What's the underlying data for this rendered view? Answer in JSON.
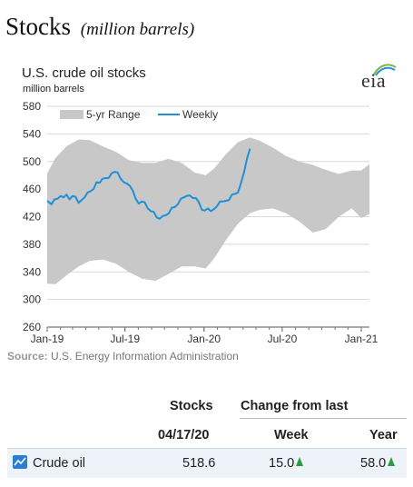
{
  "page": {
    "title": "Stocks",
    "title_sub": "(million barrels)"
  },
  "logo": {
    "text": "eia"
  },
  "chart_data": {
    "type": "line",
    "title": "U.S. crude oil stocks",
    "unit_label": "million  barrels",
    "ylim": [
      260,
      580
    ],
    "yticks": [
      260,
      300,
      340,
      380,
      420,
      460,
      500,
      540,
      580
    ],
    "xlim": [
      "2019-01-01",
      "2021-01-20"
    ],
    "xticks": [
      {
        "date": "2019-01-01",
        "label": "Jan-19"
      },
      {
        "date": "2019-07-01",
        "label": "Jul-19"
      },
      {
        "date": "2020-01-01",
        "label": "Jan-20"
      },
      {
        "date": "2020-07-01",
        "label": "Jul-20"
      },
      {
        "date": "2021-01-01",
        "label": "Jan-21"
      }
    ],
    "grid": true,
    "legend_position": "top-left",
    "legend": [
      "5-yr Range",
      "Weekly"
    ],
    "colors": {
      "range": "#c8c8c8",
      "weekly": "#1e90d8"
    },
    "range_series": {
      "name": "5-yr Range",
      "points": [
        {
          "x": "2019-01-01",
          "low": 323,
          "high": 483
        },
        {
          "x": "2019-01-20",
          "low": 322,
          "high": 505
        },
        {
          "x": "2019-02-15",
          "low": 335,
          "high": 522
        },
        {
          "x": "2019-03-15",
          "low": 348,
          "high": 532
        },
        {
          "x": "2019-04-10",
          "low": 356,
          "high": 531
        },
        {
          "x": "2019-05-10",
          "low": 358,
          "high": 522
        },
        {
          "x": "2019-06-10",
          "low": 352,
          "high": 514
        },
        {
          "x": "2019-07-10",
          "low": 340,
          "high": 502
        },
        {
          "x": "2019-08-10",
          "low": 330,
          "high": 498
        },
        {
          "x": "2019-09-10",
          "low": 327,
          "high": 498
        },
        {
          "x": "2019-10-10",
          "low": 337,
          "high": 504
        },
        {
          "x": "2019-11-10",
          "low": 348,
          "high": 498
        },
        {
          "x": "2019-12-10",
          "low": 348,
          "high": 484
        },
        {
          "x": "2020-01-05",
          "low": 345,
          "high": 480
        },
        {
          "x": "2020-01-25",
          "low": 360,
          "high": 490
        },
        {
          "x": "2020-02-20",
          "low": 385,
          "high": 510
        },
        {
          "x": "2020-03-20",
          "low": 410,
          "high": 528
        },
        {
          "x": "2020-04-17",
          "low": 425,
          "high": 535
        },
        {
          "x": "2020-05-10",
          "low": 430,
          "high": 530
        },
        {
          "x": "2020-06-10",
          "low": 432,
          "high": 520
        },
        {
          "x": "2020-07-10",
          "low": 425,
          "high": 508
        },
        {
          "x": "2020-08-10",
          "low": 413,
          "high": 500
        },
        {
          "x": "2020-09-10",
          "low": 397,
          "high": 495
        },
        {
          "x": "2020-10-10",
          "low": 402,
          "high": 488
        },
        {
          "x": "2020-11-10",
          "low": 420,
          "high": 482
        },
        {
          "x": "2020-12-10",
          "low": 432,
          "high": 487
        },
        {
          "x": "2021-01-01",
          "low": 418,
          "high": 487
        },
        {
          "x": "2021-01-20",
          "low": 424,
          "high": 496
        }
      ]
    },
    "series": [
      {
        "name": "Weekly",
        "points": [
          {
            "x": "2019-01-01",
            "y": 443
          },
          {
            "x": "2019-01-11",
            "y": 438
          },
          {
            "x": "2019-01-18",
            "y": 445
          },
          {
            "x": "2019-01-25",
            "y": 446
          },
          {
            "x": "2019-02-01",
            "y": 450
          },
          {
            "x": "2019-02-08",
            "y": 448
          },
          {
            "x": "2019-02-15",
            "y": 452
          },
          {
            "x": "2019-02-22",
            "y": 445
          },
          {
            "x": "2019-03-01",
            "y": 450
          },
          {
            "x": "2019-03-08",
            "y": 449
          },
          {
            "x": "2019-03-15",
            "y": 440
          },
          {
            "x": "2019-03-22",
            "y": 444
          },
          {
            "x": "2019-03-29",
            "y": 448
          },
          {
            "x": "2019-04-05",
            "y": 455
          },
          {
            "x": "2019-04-12",
            "y": 457
          },
          {
            "x": "2019-04-19",
            "y": 460
          },
          {
            "x": "2019-04-26",
            "y": 470
          },
          {
            "x": "2019-05-03",
            "y": 469
          },
          {
            "x": "2019-05-10",
            "y": 475
          },
          {
            "x": "2019-05-17",
            "y": 476
          },
          {
            "x": "2019-05-24",
            "y": 476
          },
          {
            "x": "2019-05-31",
            "y": 483
          },
          {
            "x": "2019-06-07",
            "y": 485
          },
          {
            "x": "2019-06-14",
            "y": 484
          },
          {
            "x": "2019-06-21",
            "y": 475
          },
          {
            "x": "2019-06-28",
            "y": 470
          },
          {
            "x": "2019-07-05",
            "y": 468
          },
          {
            "x": "2019-07-12",
            "y": 465
          },
          {
            "x": "2019-07-19",
            "y": 458
          },
          {
            "x": "2019-07-26",
            "y": 446
          },
          {
            "x": "2019-08-02",
            "y": 439
          },
          {
            "x": "2019-08-09",
            "y": 442
          },
          {
            "x": "2019-08-16",
            "y": 441
          },
          {
            "x": "2019-08-23",
            "y": 432
          },
          {
            "x": "2019-08-30",
            "y": 428
          },
          {
            "x": "2019-09-06",
            "y": 427
          },
          {
            "x": "2019-09-13",
            "y": 419
          },
          {
            "x": "2019-09-20",
            "y": 417
          },
          {
            "x": "2019-09-27",
            "y": 421
          },
          {
            "x": "2019-10-04",
            "y": 422
          },
          {
            "x": "2019-10-11",
            "y": 425
          },
          {
            "x": "2019-10-18",
            "y": 433
          },
          {
            "x": "2019-10-25",
            "y": 434
          },
          {
            "x": "2019-11-01",
            "y": 438
          },
          {
            "x": "2019-11-08",
            "y": 446
          },
          {
            "x": "2019-11-15",
            "y": 448
          },
          {
            "x": "2019-11-22",
            "y": 450
          },
          {
            "x": "2019-11-29",
            "y": 451
          },
          {
            "x": "2019-12-06",
            "y": 447
          },
          {
            "x": "2019-12-13",
            "y": 447
          },
          {
            "x": "2019-12-20",
            "y": 441
          },
          {
            "x": "2019-12-27",
            "y": 430
          },
          {
            "x": "2020-01-03",
            "y": 429
          },
          {
            "x": "2020-01-10",
            "y": 432
          },
          {
            "x": "2020-01-17",
            "y": 428
          },
          {
            "x": "2020-01-24",
            "y": 431
          },
          {
            "x": "2020-01-31",
            "y": 435
          },
          {
            "x": "2020-02-07",
            "y": 442
          },
          {
            "x": "2020-02-14",
            "y": 442
          },
          {
            "x": "2020-02-21",
            "y": 443
          },
          {
            "x": "2020-02-28",
            "y": 444
          },
          {
            "x": "2020-03-06",
            "y": 452
          },
          {
            "x": "2020-03-13",
            "y": 453
          },
          {
            "x": "2020-03-20",
            "y": 455
          },
          {
            "x": "2020-03-27",
            "y": 469
          },
          {
            "x": "2020-04-03",
            "y": 484
          },
          {
            "x": "2020-04-10",
            "y": 504
          },
          {
            "x": "2020-04-17",
            "y": 518.6
          }
        ]
      }
    ]
  },
  "source": {
    "label": "Source:",
    "text": "U.S. Energy Information Administration"
  },
  "table": {
    "col_stocks": "Stocks",
    "col_change": "Change from last",
    "date": "04/17/20",
    "col_week": "Week",
    "col_year": "Year",
    "rows": [
      {
        "name": "Crude oil",
        "value": "518.6",
        "week": "15.0",
        "year": "58.0"
      }
    ]
  }
}
